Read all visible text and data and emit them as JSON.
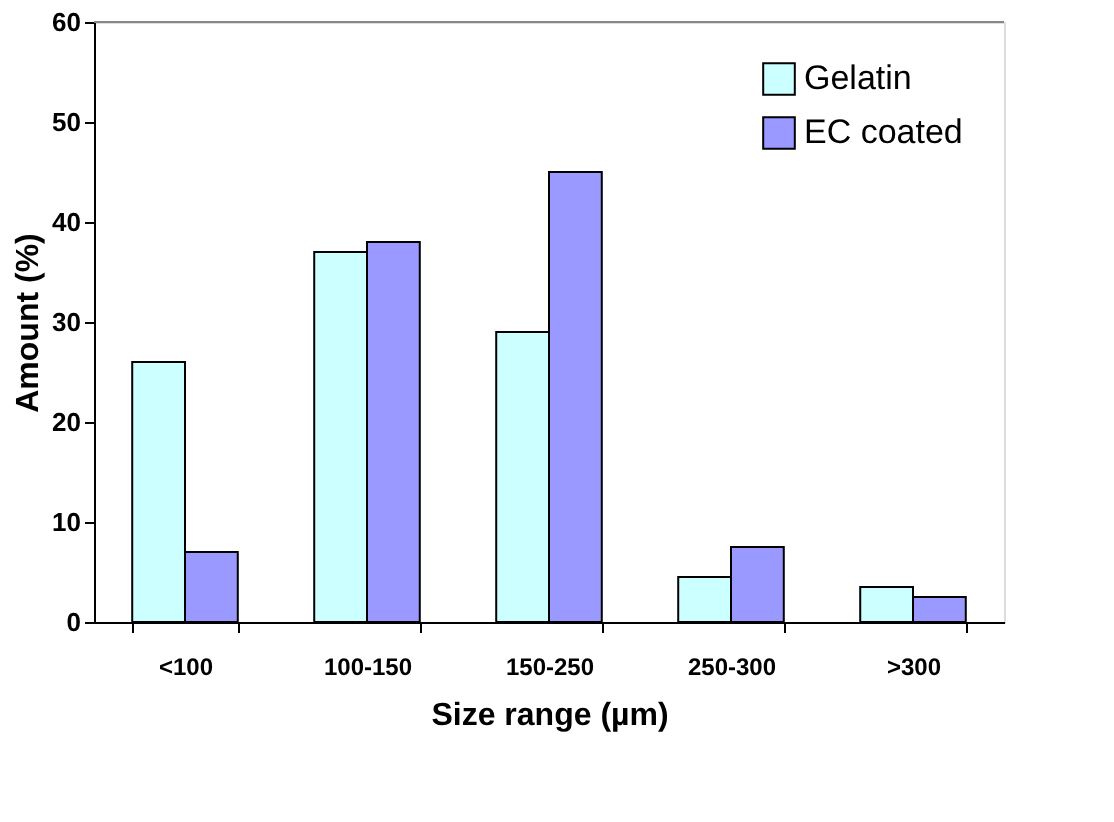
{
  "chart_data": {
    "type": "bar",
    "xlabel": "Size range (µm)",
    "ylabel": "Amount (%)",
    "categories": [
      "<100",
      "100-150",
      "150-250",
      "250-300",
      ">300"
    ],
    "series": [
      {
        "name": "Gelatin",
        "color": "#ccffff",
        "values": [
          26,
          37,
          29,
          4.5,
          3.5
        ]
      },
      {
        "name": "EC coated",
        "color": "#9999ff",
        "values": [
          7,
          38,
          45,
          7.5,
          2.5
        ]
      }
    ],
    "ylim": [
      0,
      60
    ],
    "yticks": [
      0,
      10,
      20,
      30,
      40,
      50,
      60
    ],
    "grid": false,
    "legend": "top right"
  }
}
